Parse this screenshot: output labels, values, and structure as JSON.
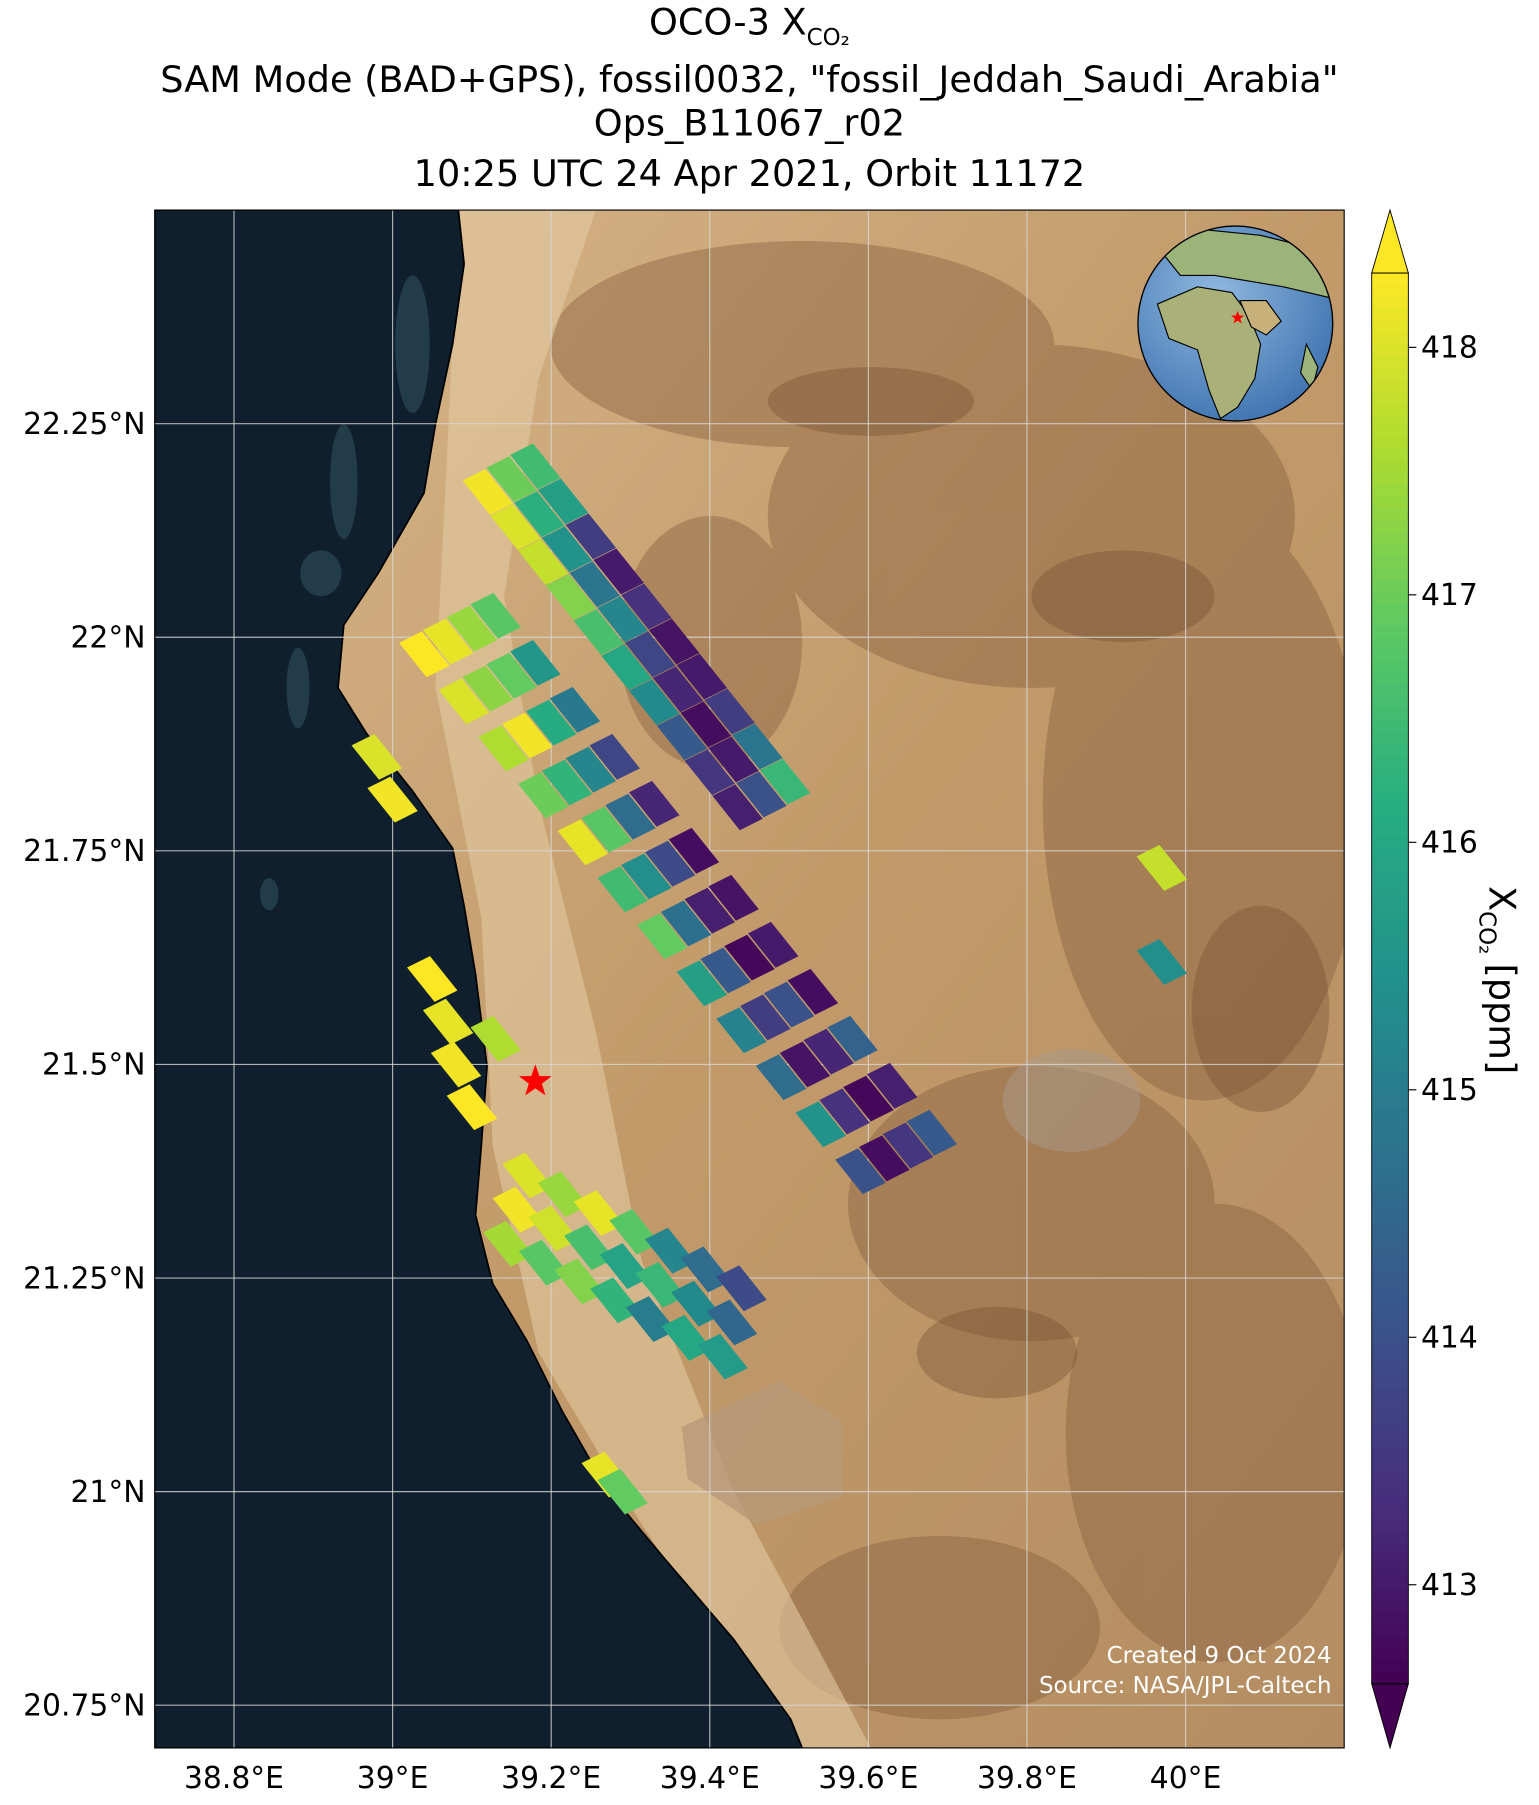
{
  "chart_data": {
    "type": "map",
    "title": {
      "text": "OCO-3 X",
      "subscript": "CO₂"
    },
    "subtitle_lines": [
      "SAM Mode (BAD+GPS), fossil0032, \"fossil_Jeddah_Saudi_Arabia\"",
      "Ops_B11067_r02",
      "10:25 UTC 24 Apr 2021, Orbit 11172"
    ],
    "xlim": [
      38.7,
      40.2
    ],
    "ylim": [
      20.7,
      22.5
    ],
    "xticks": [
      {
        "value": 38.8,
        "label": "38.8°E"
      },
      {
        "value": 39,
        "label": "39°E"
      },
      {
        "value": 39.2,
        "label": "39.2°E"
      },
      {
        "value": 39.4,
        "label": "39.4°E"
      },
      {
        "value": 39.6,
        "label": "39.6°E"
      },
      {
        "value": 39.8,
        "label": "39.8°E"
      },
      {
        "value": 40,
        "label": "40°E"
      }
    ],
    "yticks": [
      {
        "value": 22.25,
        "label": "22.25°N"
      },
      {
        "value": 22,
        "label": "22°N"
      },
      {
        "value": 21.75,
        "label": "21.75°N"
      },
      {
        "value": 21.5,
        "label": "21.5°N"
      },
      {
        "value": 21.25,
        "label": "21.25°N"
      },
      {
        "value": 21,
        "label": "21°N"
      },
      {
        "value": 20.75,
        "label": "20.75°N"
      }
    ],
    "grid": true,
    "colormap": "viridis",
    "colorbar": {
      "lim": [
        412.6,
        418.3
      ],
      "ticks": [
        413,
        414,
        415,
        416,
        417,
        418
      ],
      "extend": "both",
      "label": {
        "text": "X",
        "subscript": "CO₂",
        "unit": "[ppm]"
      }
    },
    "target": {
      "lon": 39.18,
      "lat": 21.48,
      "color": "#ff0000"
    },
    "soundings": {
      "lon": [
        39.12,
        39.15,
        39.18,
        39.155,
        39.185,
        39.215,
        39.19,
        39.22,
        39.25,
        39.225,
        39.255,
        39.285,
        39.26,
        39.29,
        39.32,
        39.295,
        39.325,
        39.355,
        39.33,
        39.36,
        39.39,
        39.365,
        39.395,
        39.425,
        39.4,
        39.43,
        39.46,
        39.435,
        39.465,
        39.495,
        39.04,
        39.07,
        39.1,
        39.13,
        39.09,
        39.12,
        39.15,
        39.18,
        39.14,
        39.17,
        39.2,
        39.23,
        39.19,
        39.22,
        39.25,
        39.28,
        39.24,
        39.27,
        39.3,
        39.33,
        39.29,
        39.32,
        39.35,
        39.38,
        39.34,
        39.37,
        39.4,
        39.43,
        39.39,
        39.42,
        39.45,
        39.48,
        39.44,
        39.47,
        39.5,
        39.53,
        39.49,
        39.52,
        39.55,
        39.58,
        39.54,
        39.57,
        39.6,
        39.63,
        39.59,
        39.62,
        39.65,
        39.68,
        39.17,
        39.158,
        39.146,
        39.215,
        39.203,
        39.191,
        39.26,
        39.248,
        39.236,
        39.305,
        39.293,
        39.281,
        39.35,
        39.338,
        39.326,
        39.395,
        39.383,
        39.371,
        39.44,
        39.428,
        39.416,
        38.98,
        39.0,
        39.05,
        39.07,
        39.08,
        39.1,
        39.13,
        39.97,
        39.97,
        39.27,
        39.29
      ],
      "lat": [
        22.17,
        22.185,
        22.2,
        22.129,
        22.144,
        22.159,
        22.088,
        22.103,
        22.118,
        22.047,
        22.062,
        22.077,
        22.006,
        22.021,
        22.036,
        21.965,
        21.98,
        21.995,
        21.924,
        21.939,
        21.954,
        21.883,
        21.898,
        21.913,
        21.842,
        21.857,
        21.872,
        21.801,
        21.816,
        21.831,
        21.98,
        21.995,
        22.01,
        22.025,
        21.925,
        21.94,
        21.955,
        21.97,
        21.87,
        21.885,
        21.9,
        21.915,
        21.815,
        21.83,
        21.845,
        21.86,
        21.76,
        21.775,
        21.79,
        21.805,
        21.705,
        21.72,
        21.735,
        21.75,
        21.65,
        21.665,
        21.68,
        21.695,
        21.595,
        21.61,
        21.625,
        21.64,
        21.54,
        21.555,
        21.57,
        21.585,
        21.485,
        21.5,
        21.515,
        21.53,
        21.43,
        21.445,
        21.46,
        21.475,
        21.375,
        21.39,
        21.405,
        21.42,
        21.37,
        21.33,
        21.29,
        21.348,
        21.308,
        21.268,
        21.326,
        21.286,
        21.246,
        21.304,
        21.264,
        21.224,
        21.282,
        21.242,
        21.202,
        21.26,
        21.22,
        21.18,
        21.238,
        21.198,
        21.158,
        21.86,
        21.81,
        21.6,
        21.55,
        21.5,
        21.45,
        21.53,
        21.73,
        21.62,
        21.02,
        21.0
      ],
      "xco2": [
        418.2,
        417.0,
        416.5,
        418.0,
        416.2,
        415.8,
        417.8,
        415.5,
        413.6,
        417.2,
        414.8,
        413.0,
        416.6,
        415.2,
        413.4,
        416.0,
        413.8,
        412.9,
        415.3,
        413.2,
        413.0,
        414.2,
        412.8,
        413.6,
        413.5,
        413.0,
        414.8,
        413.1,
        414.0,
        416.4,
        418.3,
        418.1,
        417.4,
        416.8,
        418.0,
        417.3,
        416.9,
        415.6,
        417.6,
        418.2,
        416.1,
        414.9,
        417.0,
        416.3,
        415.2,
        413.8,
        418.1,
        416.8,
        414.6,
        413.2,
        416.5,
        415.4,
        413.9,
        412.8,
        416.9,
        414.7,
        413.1,
        412.9,
        415.8,
        414.2,
        412.7,
        413.0,
        415.1,
        413.6,
        414.0,
        412.8,
        414.6,
        412.9,
        413.2,
        414.4,
        415.5,
        413.4,
        412.7,
        413.1,
        414.0,
        412.8,
        413.5,
        414.2,
        418.0,
        418.2,
        417.5,
        417.4,
        417.9,
        416.8,
        418.1,
        416.6,
        417.2,
        416.8,
        415.9,
        416.3,
        415.2,
        416.4,
        415.0,
        414.6,
        415.3,
        416.0,
        413.9,
        414.5,
        415.7,
        418.0,
        418.2,
        418.3,
        418.1,
        418.2,
        418.3,
        417.6,
        417.8,
        415.4,
        418.1,
        416.9
      ]
    },
    "credits": [
      "Created 9 Oct 2024",
      "Source: NASA/JPL-Caltech"
    ]
  }
}
